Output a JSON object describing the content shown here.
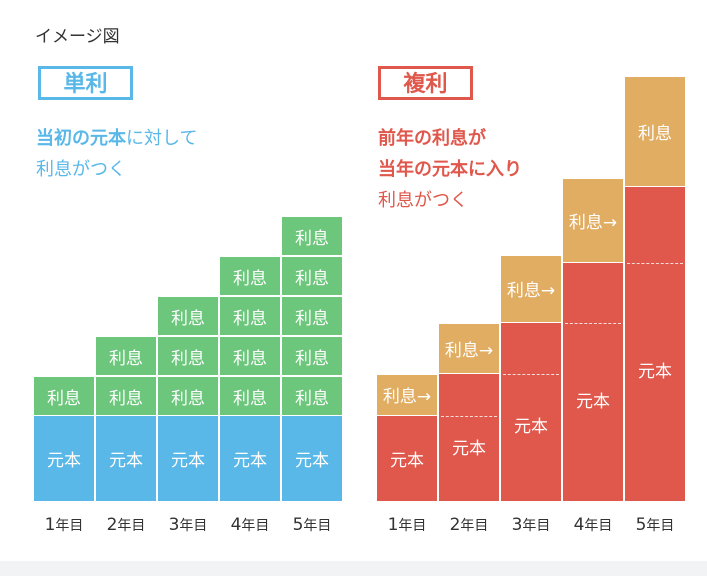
{
  "caption": "イメージ図",
  "simple": {
    "tag": "単利",
    "desc_line1_bold": "当初の元本",
    "desc_line1_rest": "に対して",
    "desc_line2": "利息がつく"
  },
  "compound": {
    "tag": "複利",
    "desc_line1": "前年の利息が",
    "desc_line2": "当年の元本に入り",
    "desc_line3": "利息がつく"
  },
  "labels": {
    "principal": "元本",
    "interest": "利息",
    "arrow": "→"
  },
  "years": [
    {
      "num": "1",
      "suffix": "年目"
    },
    {
      "num": "2",
      "suffix": "年目"
    },
    {
      "num": "3",
      "suffix": "年目"
    },
    {
      "num": "4",
      "suffix": "年目"
    },
    {
      "num": "5",
      "suffix": "年目"
    }
  ],
  "chart_data": [
    {
      "type": "bar",
      "title": "単利",
      "categories": [
        "1年目",
        "2年目",
        "3年目",
        "4年目",
        "5年目"
      ],
      "series": [
        {
          "name": "元本",
          "values": [
            1,
            1,
            1,
            1,
            1
          ]
        },
        {
          "name": "利息",
          "values": [
            1,
            2,
            3,
            4,
            5
          ]
        }
      ]
    },
    {
      "type": "bar",
      "title": "複利",
      "categories": [
        "1年目",
        "2年目",
        "3年目",
        "4年目",
        "5年目"
      ],
      "series": [
        {
          "name": "元本",
          "values": [
            1,
            1.5,
            2.1,
            2.8,
            3.7
          ]
        },
        {
          "name": "利息",
          "values": [
            0.5,
            0.6,
            0.8,
            1.0,
            1.3
          ]
        }
      ]
    }
  ],
  "colors": {
    "simple_accent": "#5ab8e8",
    "compound_accent": "#e0574c",
    "principal_simple": "#5ab8e8",
    "interest_simple": "#6cc67c",
    "principal_compound": "#e0574c",
    "interest_compound": "#e0ad62"
  }
}
